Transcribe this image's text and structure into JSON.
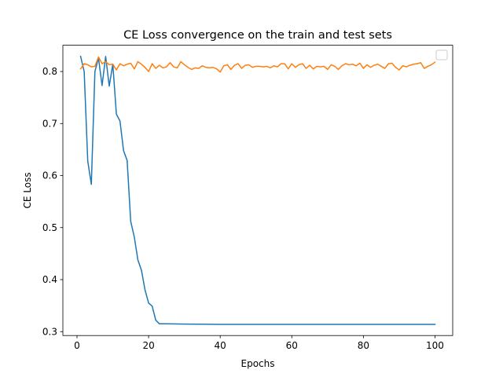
{
  "chart_data": {
    "type": "line",
    "title": "CE Loss convergence on the train and test sets",
    "xlabel": "Epochs",
    "ylabel": "CE Loss",
    "xlim": [
      -3.95,
      104.95
    ],
    "ylim": [
      0.2925,
      0.8505
    ],
    "xticks": [
      0,
      20,
      40,
      60,
      80,
      100
    ],
    "yticks": [
      0.3,
      0.4,
      0.5,
      0.6,
      0.7,
      0.8
    ],
    "ytick_labels": [
      "0.3",
      "0.4",
      "0.5",
      "0.6",
      "0.7",
      "0.8"
    ],
    "grid": false,
    "legend": {
      "placement": "upper right",
      "entries": []
    },
    "series": [
      {
        "color": "#1f77b4",
        "x": [
          1,
          2,
          3,
          4,
          5,
          6,
          7,
          8,
          9,
          10,
          11,
          12,
          13,
          14,
          15,
          16,
          17,
          18,
          19,
          20,
          21,
          22,
          23,
          24,
          25,
          30,
          40,
          50,
          60,
          70,
          80,
          90,
          100
        ],
        "y": [
          0.829,
          0.8,
          0.628,
          0.583,
          0.8,
          0.826,
          0.773,
          0.829,
          0.772,
          0.814,
          0.718,
          0.705,
          0.648,
          0.629,
          0.512,
          0.482,
          0.438,
          0.418,
          0.38,
          0.355,
          0.349,
          0.322,
          0.315,
          0.315,
          0.315,
          0.3145,
          0.314,
          0.314,
          0.314,
          0.314,
          0.314,
          0.314,
          0.314
        ]
      },
      {
        "color": "#ff7f0e",
        "x": [
          1,
          2,
          3,
          4,
          5,
          6,
          7,
          8,
          9,
          10,
          11,
          12,
          13,
          14,
          15,
          16,
          17,
          18,
          19,
          20,
          21,
          22,
          23,
          24,
          25,
          26,
          27,
          28,
          29,
          30,
          31,
          32,
          33,
          34,
          35,
          36,
          37,
          38,
          39,
          40,
          41,
          42,
          43,
          44,
          45,
          46,
          47,
          48,
          49,
          50,
          51,
          52,
          53,
          54,
          55,
          56,
          57,
          58,
          59,
          60,
          61,
          62,
          63,
          64,
          65,
          66,
          67,
          68,
          69,
          70,
          71,
          72,
          73,
          74,
          75,
          76,
          77,
          78,
          79,
          80,
          81,
          82,
          83,
          84,
          85,
          86,
          87,
          88,
          89,
          90,
          91,
          92,
          93,
          94,
          95,
          96,
          97,
          98,
          99,
          100
        ],
        "y": [
          0.805,
          0.815,
          0.813,
          0.809,
          0.81,
          0.828,
          0.815,
          0.819,
          0.813,
          0.814,
          0.803,
          0.815,
          0.811,
          0.814,
          0.816,
          0.805,
          0.819,
          0.814,
          0.808,
          0.8,
          0.815,
          0.806,
          0.812,
          0.807,
          0.809,
          0.817,
          0.809,
          0.807,
          0.819,
          0.813,
          0.808,
          0.804,
          0.807,
          0.806,
          0.811,
          0.808,
          0.807,
          0.808,
          0.805,
          0.799,
          0.811,
          0.813,
          0.804,
          0.812,
          0.815,
          0.806,
          0.812,
          0.813,
          0.808,
          0.81,
          0.81,
          0.809,
          0.81,
          0.807,
          0.811,
          0.809,
          0.815,
          0.815,
          0.805,
          0.815,
          0.808,
          0.813,
          0.815,
          0.806,
          0.812,
          0.805,
          0.81,
          0.809,
          0.81,
          0.804,
          0.813,
          0.81,
          0.804,
          0.811,
          0.815,
          0.813,
          0.814,
          0.811,
          0.816,
          0.806,
          0.813,
          0.808,
          0.812,
          0.814,
          0.81,
          0.806,
          0.815,
          0.816,
          0.808,
          0.803,
          0.811,
          0.809,
          0.812,
          0.814,
          0.815,
          0.817,
          0.806,
          0.81,
          0.813,
          0.818
        ]
      }
    ]
  }
}
